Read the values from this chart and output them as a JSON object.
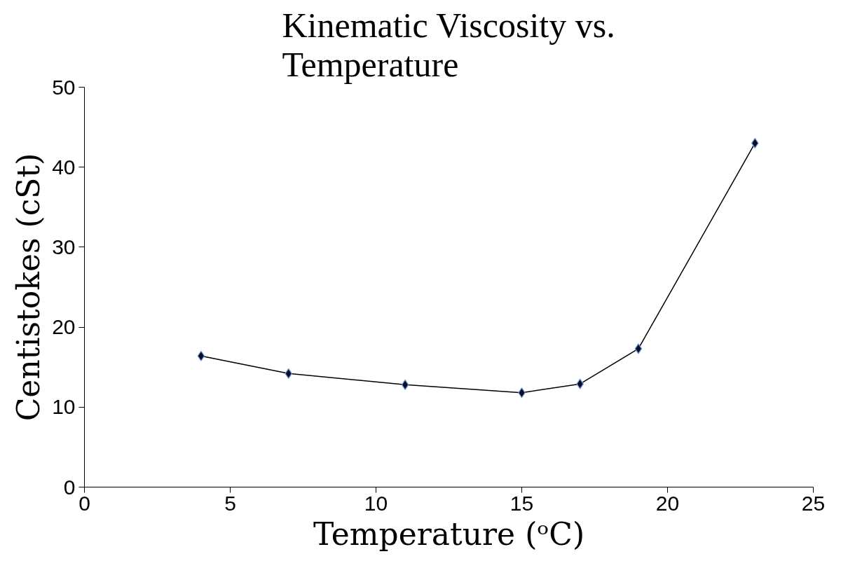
{
  "chart_data": {
    "type": "line",
    "title": "Kinematic Viscosity vs. Temperature",
    "xlabel": "Temperature (ᵒC)",
    "ylabel": "Centistokes (cSt)",
    "x": [
      4,
      7,
      11,
      15,
      17,
      19,
      23
    ],
    "series": [
      {
        "color": "#000000",
        "values": [
          16.4,
          14.2,
          12.8,
          11.8,
          12.9,
          17.3,
          43.0
        ]
      }
    ],
    "xlim": [
      0,
      25
    ],
    "ylim": [
      0,
      50
    ],
    "xticks": [
      0,
      5,
      10,
      15,
      20,
      25
    ],
    "yticks": [
      0,
      10,
      20,
      30,
      40,
      50
    ],
    "grid": false,
    "marker": "diamond",
    "line_style": "solid"
  }
}
